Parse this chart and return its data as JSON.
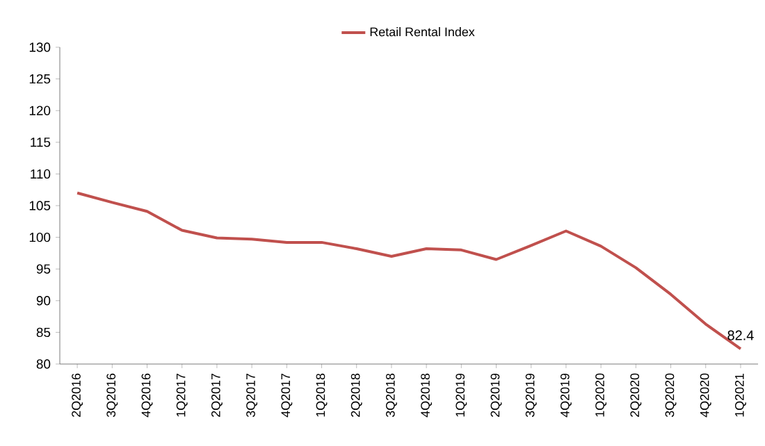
{
  "chart_data": {
    "type": "line",
    "categories": [
      "2Q2016",
      "3Q2016",
      "4Q2016",
      "1Q2017",
      "2Q2017",
      "3Q2017",
      "4Q2017",
      "1Q2018",
      "2Q2018",
      "3Q2018",
      "4Q2018",
      "1Q2019",
      "2Q2019",
      "3Q2019",
      "4Q2019",
      "1Q2020",
      "2Q2020",
      "3Q2020",
      "4Q2020",
      "1Q2021"
    ],
    "series": [
      {
        "name": "Retail Rental Index",
        "color": "#c0504d",
        "values": [
          107.0,
          105.5,
          104.1,
          101.1,
          99.9,
          99.7,
          99.2,
          99.2,
          98.2,
          97.0,
          98.2,
          98.0,
          96.5,
          98.7,
          101.0,
          98.6,
          95.2,
          91.0,
          86.3,
          82.4
        ]
      }
    ],
    "ylim": [
      80,
      130
    ],
    "yticks": [
      80,
      85,
      90,
      95,
      100,
      105,
      110,
      115,
      120,
      125,
      130
    ],
    "annotations": [
      {
        "text": "82.4",
        "x": "1Q2021",
        "y": 82.4
      }
    ],
    "legend": "top",
    "grid": false,
    "marker": "none",
    "line_style": "solid"
  }
}
